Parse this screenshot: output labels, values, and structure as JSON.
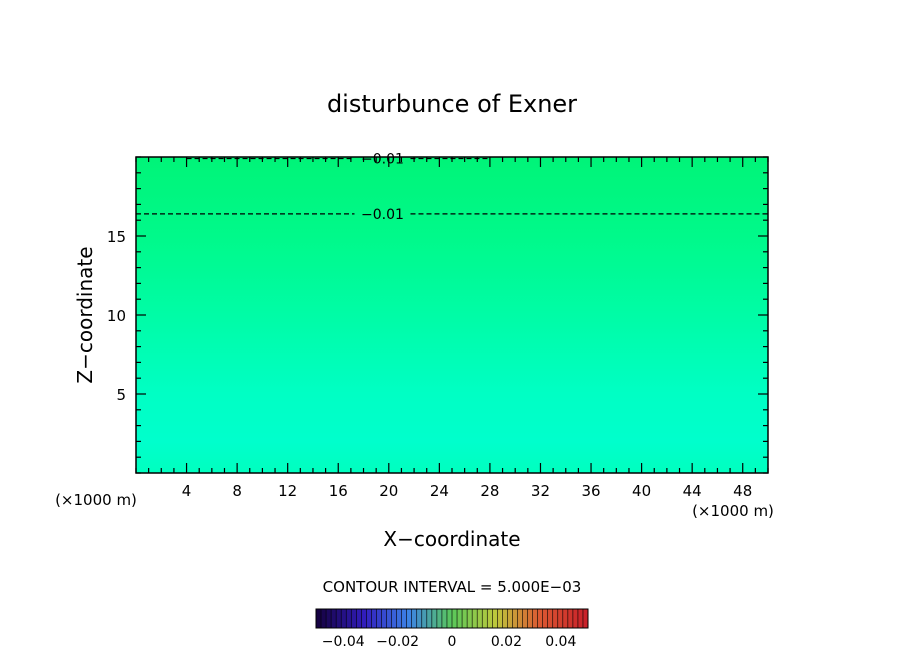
{
  "chart_data": {
    "type": "heatmap",
    "title": "disturbunce of Exner",
    "xlabel": "X−coordinate",
    "ylabel": "Z−coordinate",
    "x_unit_left": "(×1000 m)",
    "x_unit_right": "(×1000 m)",
    "xlim": [
      0,
      50
    ],
    "ylim": [
      0,
      20
    ],
    "xticks": [
      4,
      8,
      12,
      16,
      20,
      24,
      28,
      32,
      36,
      40,
      44,
      48
    ],
    "yticks": [
      5,
      10,
      15
    ],
    "field_color_stops": [
      {
        "z": 0,
        "color": "#00ffbf"
      },
      {
        "z": 2,
        "color": "#00ffcc"
      },
      {
        "z": 5,
        "color": "#00ffc4"
      },
      {
        "z": 10,
        "color": "#00fca6"
      },
      {
        "z": 15,
        "color": "#00f98a"
      },
      {
        "z": 20,
        "color": "#00f478"
      }
    ],
    "contours": [
      {
        "z": 19.9,
        "label": "−0.01"
      },
      {
        "z": 16.4,
        "label": "−0.01"
      }
    ],
    "contour_interval_text": "CONTOUR INTERVAL = 5.000E−03",
    "colorbar": {
      "range": [
        -0.05,
        0.05
      ],
      "tick_labels": [
        "−0.04",
        "−0.02",
        "0",
        "0.02",
        "0.04"
      ],
      "tick_values": [
        -0.04,
        -0.02,
        0,
        0.02,
        0.04
      ]
    }
  }
}
